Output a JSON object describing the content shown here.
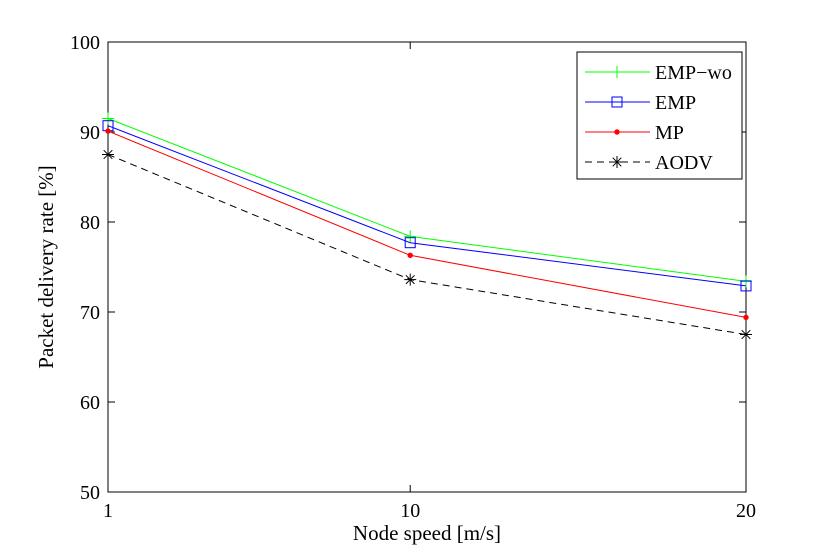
{
  "chart_data": {
    "type": "line",
    "title": "",
    "xlabel": "Node speed [m/s]",
    "ylabel": "Packet delivery rate [%]",
    "x": [
      1,
      10,
      20
    ],
    "xticks": [
      1,
      10,
      20
    ],
    "xlim": [
      1,
      20
    ],
    "ylim": [
      50,
      100
    ],
    "yticks": [
      50,
      60,
      70,
      80,
      90,
      100
    ],
    "grid": false,
    "legend_position": "top-right",
    "series": [
      {
        "name": "EMP−wo",
        "values": [
          91.5,
          78.4,
          73.4
        ],
        "color": "#00ff00",
        "dash": "solid",
        "marker": "plus"
      },
      {
        "name": "EMP",
        "values": [
          90.7,
          77.7,
          72.9
        ],
        "color": "#0000ff",
        "dash": "solid",
        "marker": "square"
      },
      {
        "name": "MP",
        "values": [
          90.1,
          76.3,
          69.4
        ],
        "color": "#ff0000",
        "dash": "solid",
        "marker": "dot"
      },
      {
        "name": "AODV",
        "values": [
          87.5,
          73.6,
          67.5
        ],
        "color": "#000000",
        "dash": "dashed",
        "marker": "asterisk"
      }
    ]
  }
}
